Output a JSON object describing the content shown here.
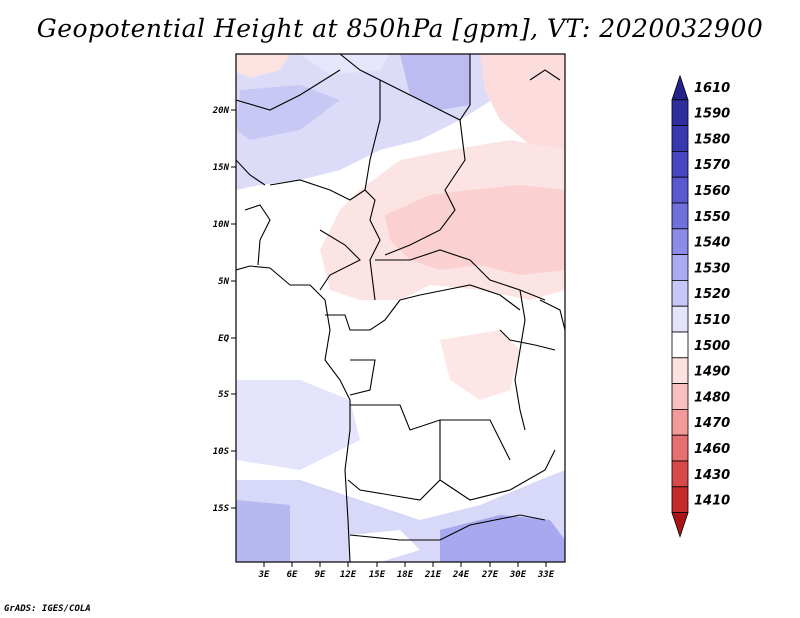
{
  "title": "Geopotential Height at 850hPa [gpm], VT: 2020032900",
  "credit": "GrADS: IGES/COLA",
  "map": {
    "lon_ticks": [
      "3E",
      "6E",
      "9E",
      "12E",
      "15E",
      "18E",
      "21E",
      "24E",
      "27E",
      "30E",
      "33E"
    ],
    "lat_ticks": [
      "20N",
      "15N",
      "10N",
      "5N",
      "EQ",
      "5S",
      "10S",
      "15S"
    ]
  },
  "colorbar": {
    "levels": [
      "1610",
      "1590",
      "1580",
      "1570",
      "1560",
      "1550",
      "1540",
      "1530",
      "1520",
      "1510",
      "1500",
      "1490",
      "1480",
      "1470",
      "1460",
      "1430",
      "1410"
    ],
    "colors": [
      "#23238c",
      "#2e2e9e",
      "#3838b0",
      "#4848c2",
      "#5a5ad0",
      "#7070dc",
      "#8c8ce6",
      "#aaaaf0",
      "#c8c8f8",
      "#e4e4fc",
      "#ffffff",
      "#fde0e0",
      "#f8c0c0",
      "#f09a9a",
      "#e67070",
      "#d84a4a",
      "#c42a2a",
      "#a81414"
    ]
  }
}
